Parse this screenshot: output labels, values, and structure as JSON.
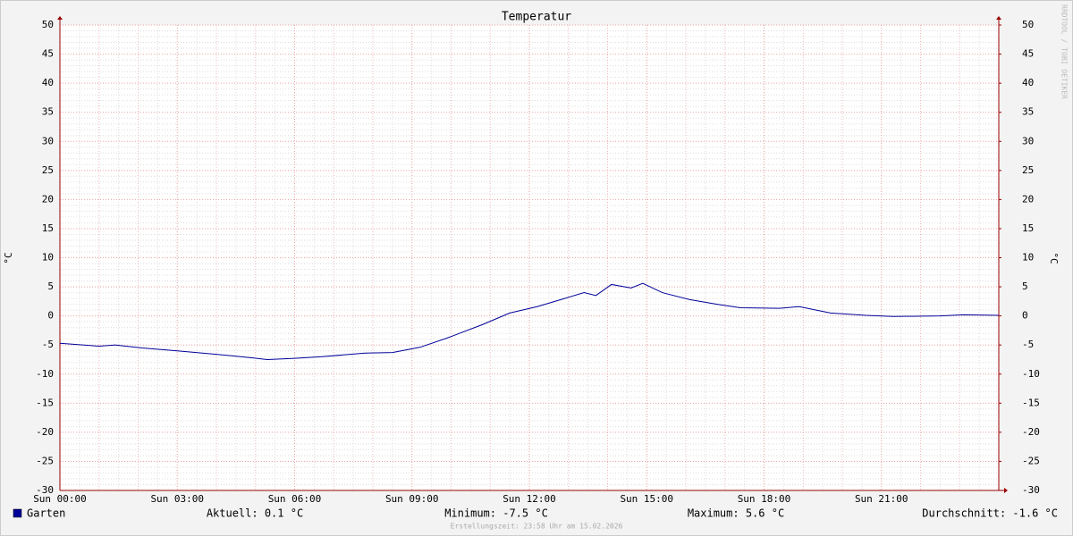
{
  "chart_data": {
    "type": "line",
    "title": "Temperatur",
    "y_label": "°C",
    "y2_label": "°C",
    "watermark": "RRDTOOL / TOBI OETIKER",
    "footer": "Erstellungszeit: 23:58 Uhr am 15.02.2026",
    "xlim": [
      0,
      24
    ],
    "xticks": [
      {
        "value": 0,
        "label": "Sun 00:00"
      },
      {
        "value": 3,
        "label": "Sun 03:00"
      },
      {
        "value": 6,
        "label": "Sun 06:00"
      },
      {
        "value": 9,
        "label": "Sun 09:00"
      },
      {
        "value": 12,
        "label": "Sun 12:00"
      },
      {
        "value": 15,
        "label": "Sun 15:00"
      },
      {
        "value": 18,
        "label": "Sun 18:00"
      },
      {
        "value": 21,
        "label": "Sun 21:00"
      }
    ],
    "ylim": [
      -30,
      50
    ],
    "yticks": [
      -30,
      -25,
      -20,
      -15,
      -10,
      -5,
      0,
      5,
      10,
      15,
      20,
      25,
      30,
      35,
      40,
      45,
      50
    ],
    "y2lim": [
      -30,
      50
    ],
    "y2ticks": [
      -30,
      -25,
      -20,
      -15,
      -10,
      -5,
      0,
      5,
      10,
      15,
      20,
      25,
      30,
      35,
      40,
      45,
      50
    ],
    "grid": true,
    "x": [
      0,
      1,
      1.4,
      2.1,
      3,
      4,
      4.9,
      5.3,
      6,
      6.7,
      7.8,
      8.5,
      9.2,
      9.9,
      10.8,
      11.5,
      12.2,
      12.9,
      13.4,
      13.7,
      14.1,
      14.6,
      14.9,
      15.4,
      16.1,
      16.8,
      17.4,
      18.4,
      18.9,
      19.7,
      20.6,
      21.3,
      22.5,
      23.1,
      24
    ],
    "series": [
      {
        "name": "Garten",
        "color": "#000099",
        "values": [
          -4.7,
          -5.2,
          -5.0,
          -5.5,
          -6.0,
          -6.6,
          -7.2,
          -7.5,
          -7.3,
          -7.0,
          -6.4,
          -6.3,
          -5.4,
          -3.8,
          -1.5,
          0.5,
          1.6,
          3.0,
          4.0,
          3.5,
          5.4,
          4.8,
          5.6,
          4.0,
          2.8,
          2.0,
          1.4,
          1.3,
          1.6,
          0.5,
          0.1,
          -0.1,
          0.0,
          0.2,
          0.1
        ]
      }
    ],
    "stats": [
      "Aktuell: 0.1 °C",
      "Minimum: -7.5 °C",
      "Maximum: 5.6 °C",
      "Durchschnitt: -1.6 °C"
    ]
  }
}
